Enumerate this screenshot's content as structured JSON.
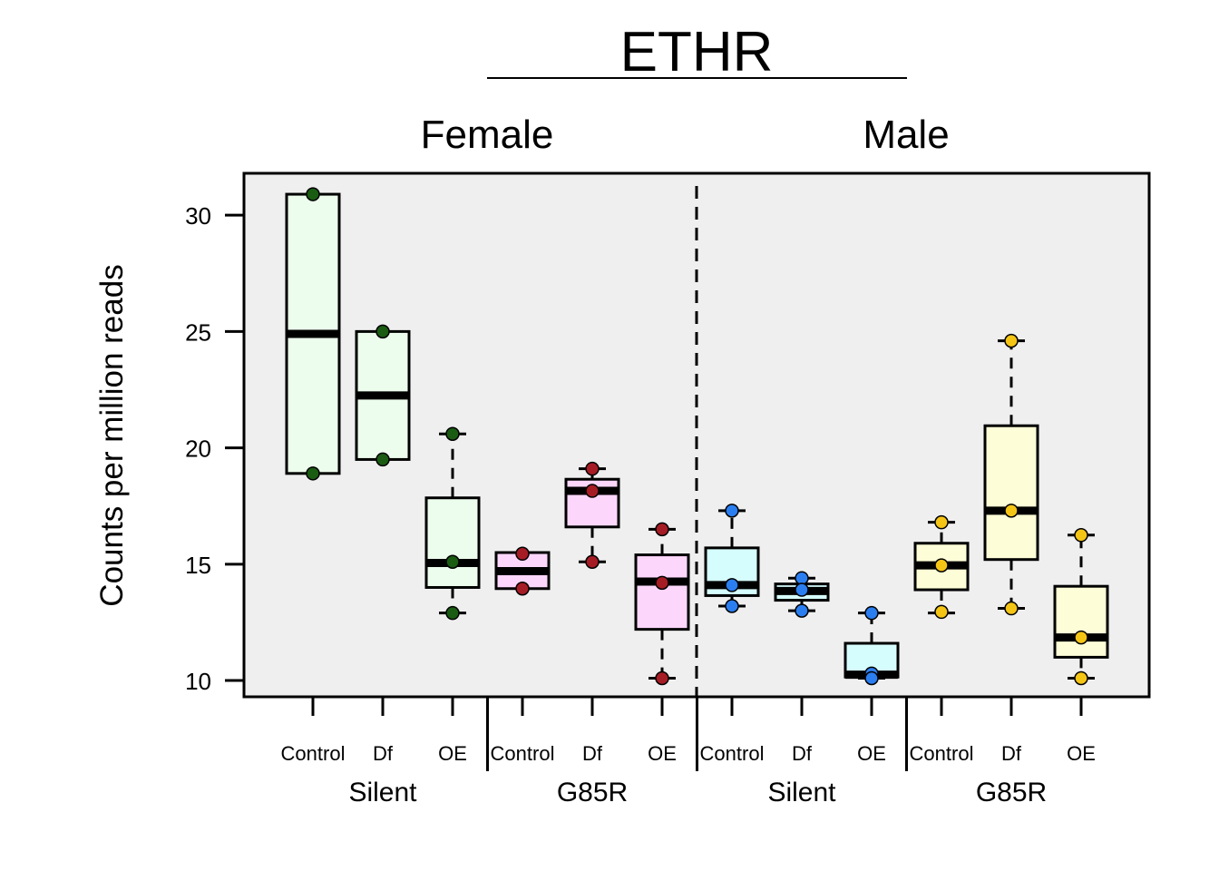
{
  "chart_data": {
    "type": "boxplot",
    "title": "ETHR",
    "ylabel": "Counts per million reads",
    "xlabel": "",
    "ylim": [
      9.3,
      31.8
    ],
    "yticks": [
      10,
      15,
      20,
      25,
      30
    ],
    "grid": false,
    "background": "#efefef",
    "sexes": [
      "Female",
      "Male"
    ],
    "genotypes": [
      "Silent",
      "G85R",
      "Silent",
      "G85R"
    ],
    "conditions": [
      "Control",
      "Df",
      "OE"
    ],
    "groups": [
      {
        "sex": "Female",
        "genotype": "Silent",
        "condition": "Control",
        "fill": "#edfded",
        "point": "#1a5c12",
        "whisker_low": 18.9,
        "q1": 18.9,
        "median": 24.9,
        "q3": 30.9,
        "whisker_high": 30.9,
        "points": [
          30.9,
          18.9
        ]
      },
      {
        "sex": "Female",
        "genotype": "Silent",
        "condition": "Df",
        "fill": "#edfded",
        "point": "#1a5c12",
        "whisker_low": 19.5,
        "q1": 19.5,
        "median": 22.25,
        "q3": 25.0,
        "whisker_high": 25.0,
        "points": [
          25.0,
          19.5
        ]
      },
      {
        "sex": "Female",
        "genotype": "Silent",
        "condition": "OE",
        "fill": "#edfded",
        "point": "#1a5c12",
        "whisker_low": 12.9,
        "q1": 14.0,
        "median": 15.05,
        "q3": 17.85,
        "whisker_high": 20.6,
        "points": [
          20.6,
          15.1,
          12.9
        ]
      },
      {
        "sex": "Female",
        "genotype": "G85R",
        "condition": "Control",
        "fill": "#fdd7fb",
        "point": "#a61c25",
        "whisker_low": 13.95,
        "q1": 13.95,
        "median": 14.7,
        "q3": 15.5,
        "whisker_high": 15.5,
        "points": [
          15.45,
          13.95
        ]
      },
      {
        "sex": "Female",
        "genotype": "G85R",
        "condition": "Df",
        "fill": "#fdd7fb",
        "point": "#a61c25",
        "whisker_low": 15.1,
        "q1": 16.6,
        "median": 18.15,
        "q3": 18.65,
        "whisker_high": 19.1,
        "points": [
          19.1,
          18.15,
          15.1
        ]
      },
      {
        "sex": "Female",
        "genotype": "G85R",
        "condition": "OE",
        "fill": "#fdd7fb",
        "point": "#a61c25",
        "whisker_low": 10.1,
        "q1": 12.2,
        "median": 14.25,
        "q3": 15.4,
        "whisker_high": 16.5,
        "points": [
          16.5,
          14.2,
          10.1
        ]
      },
      {
        "sex": "Male",
        "genotype": "Silent",
        "condition": "Control",
        "fill": "#d6fdfd",
        "point": "#2b7ef0",
        "whisker_low": 13.2,
        "q1": 13.65,
        "median": 14.1,
        "q3": 15.7,
        "whisker_high": 17.3,
        "points": [
          17.3,
          14.1,
          13.2
        ]
      },
      {
        "sex": "Male",
        "genotype": "Silent",
        "condition": "Df",
        "fill": "#d6fdfd",
        "point": "#2b7ef0",
        "whisker_low": 13.0,
        "q1": 13.45,
        "median": 13.85,
        "q3": 14.15,
        "whisker_high": 14.4,
        "points": [
          14.4,
          13.9,
          13.0
        ]
      },
      {
        "sex": "Male",
        "genotype": "Silent",
        "condition": "OE",
        "fill": "#d6fdfd",
        "point": "#2b7ef0",
        "whisker_low": 10.1,
        "q1": 10.15,
        "median": 10.25,
        "q3": 11.6,
        "whisker_high": 12.9,
        "points": [
          12.9,
          10.3,
          10.1
        ]
      },
      {
        "sex": "Male",
        "genotype": "G85R",
        "condition": "Control",
        "fill": "#fdfdd7",
        "point": "#f5c516",
        "whisker_low": 12.9,
        "q1": 13.9,
        "median": 14.95,
        "q3": 15.9,
        "whisker_high": 16.8,
        "points": [
          16.8,
          14.95,
          12.95
        ]
      },
      {
        "sex": "Male",
        "genotype": "G85R",
        "condition": "Df",
        "fill": "#fdfdd7",
        "point": "#f5c516",
        "whisker_low": 13.1,
        "q1": 15.2,
        "median": 17.3,
        "q3": 20.95,
        "whisker_high": 24.6,
        "points": [
          24.6,
          17.3,
          13.1
        ]
      },
      {
        "sex": "Male",
        "genotype": "G85R",
        "condition": "OE",
        "fill": "#fdfdd7",
        "point": "#f5c516",
        "whisker_low": 10.1,
        "q1": 11.0,
        "median": 11.85,
        "q3": 14.05,
        "whisker_high": 16.25,
        "points": [
          16.25,
          11.85,
          10.1
        ]
      }
    ]
  }
}
